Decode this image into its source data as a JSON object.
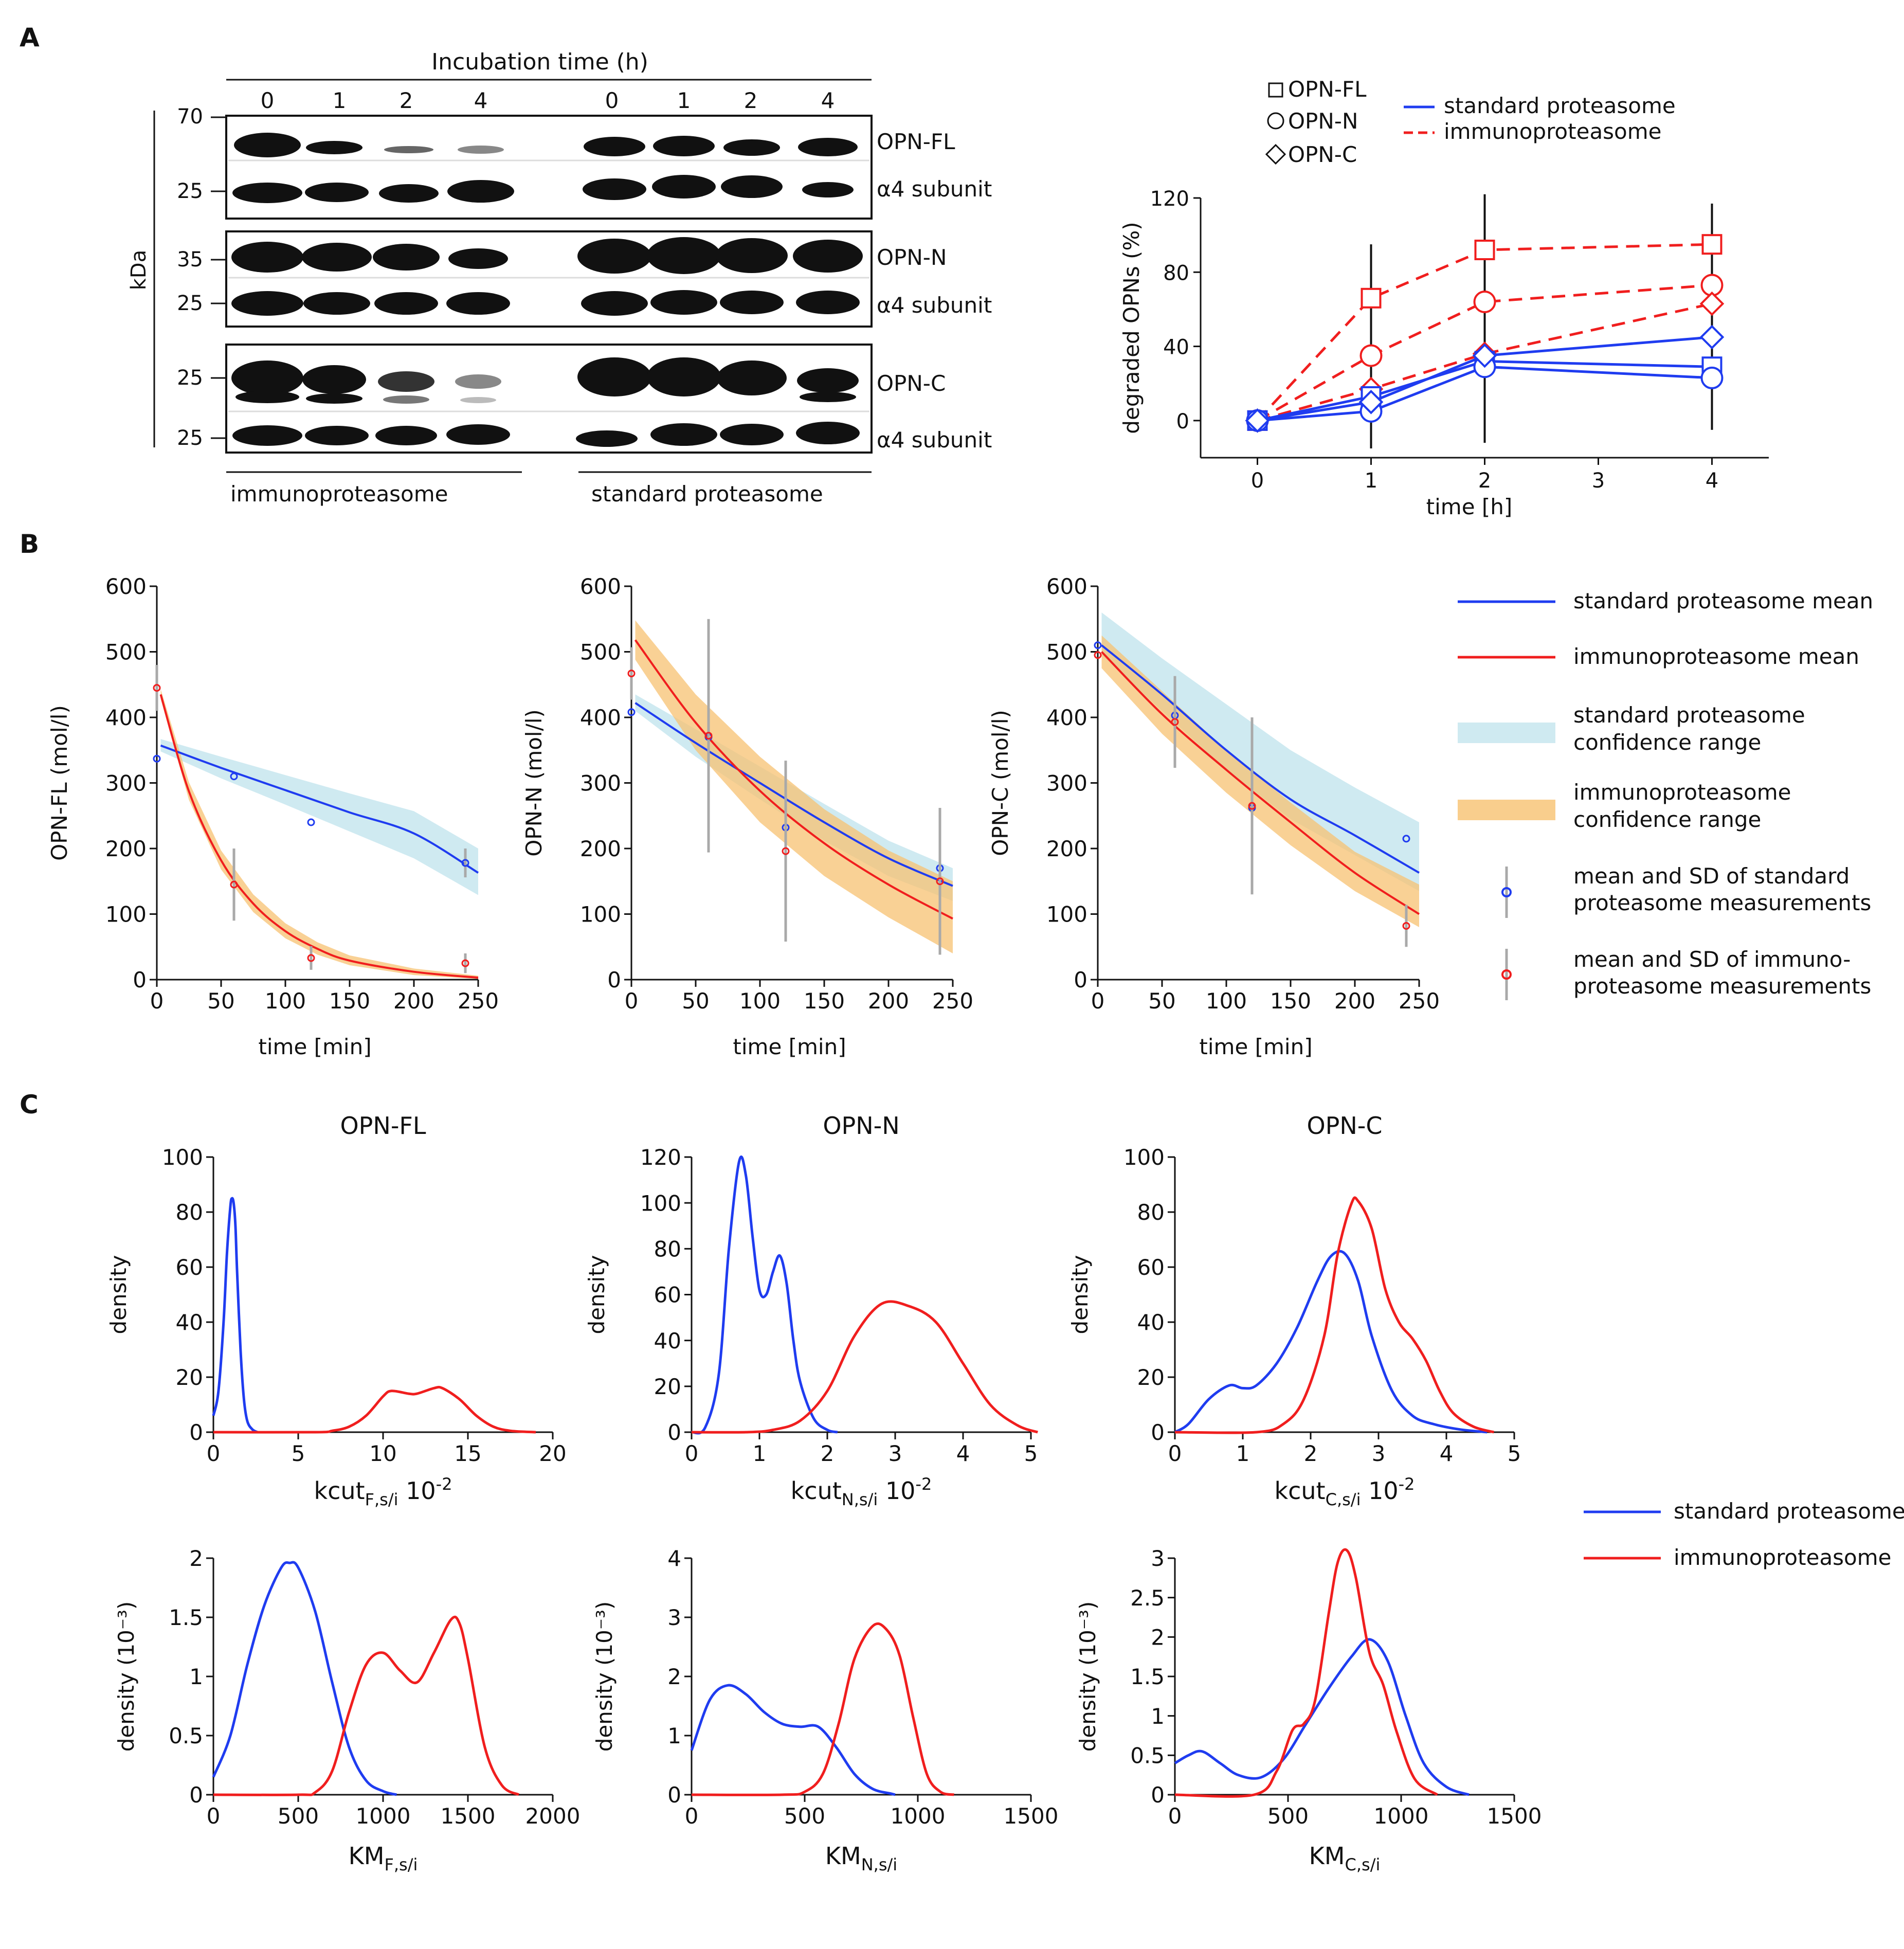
{
  "panels": {
    "A": "A",
    "B": "B",
    "C": "C"
  },
  "blot": {
    "title": "Incubation time (h)",
    "lanes": [
      "0",
      "1",
      "2",
      "4",
      "0",
      "1",
      "2",
      "4"
    ],
    "kda_label": "kDa",
    "mw": {
      "70": "70",
      "25": "25",
      "35": "35"
    },
    "band_labels": {
      "opn_fl": "OPN-FL",
      "alpha4": "α4 subunit",
      "opn_n": "OPN-N",
      "opn_c": "OPN-C"
    },
    "group_immuno": "immunoproteasome",
    "group_standard": "standard proteasome"
  },
  "colors": {
    "standard": "#1f3cf0",
    "immuno": "#f01e1e",
    "std_band": "#bfe3ec",
    "imm_band": "#f7c271",
    "sd": "#a9a9a9"
  },
  "chart_data": [
    {
      "id": "A-right",
      "type": "line",
      "xlabel": "time [h]",
      "ylabel": "degraded OPNs (%)",
      "xlim": [
        -0.5,
        4.5
      ],
      "ylim": [
        -20,
        120
      ],
      "xticks": [
        0,
        1,
        2,
        3,
        4
      ],
      "yticks": [
        0,
        40,
        80,
        120
      ],
      "x": [
        0,
        1,
        2,
        4
      ],
      "errorbars": [
        {
          "x": 1,
          "low": -15,
          "high": 95
        },
        {
          "x": 2,
          "low": -12,
          "high": 122
        },
        {
          "x": 4,
          "low": -5,
          "high": 117
        }
      ],
      "series": [
        {
          "name": "OPN-FL",
          "group": "immunoproteasome",
          "marker": "square",
          "values": [
            0,
            66,
            92,
            95
          ]
        },
        {
          "name": "OPN-N",
          "group": "immunoproteasome",
          "marker": "circle",
          "values": [
            0,
            35,
            64,
            73
          ]
        },
        {
          "name": "OPN-C",
          "group": "immunoproteasome",
          "marker": "diamond",
          "values": [
            0,
            17,
            36,
            63
          ]
        },
        {
          "name": "OPN-FL",
          "group": "standard proteasome",
          "marker": "square",
          "values": [
            0,
            13,
            32,
            29
          ]
        },
        {
          "name": "OPN-N",
          "group": "standard proteasome",
          "marker": "circle",
          "values": [
            0,
            5,
            29,
            23
          ]
        },
        {
          "name": "OPN-C",
          "group": "standard proteasome",
          "marker": "diamond",
          "values": [
            0,
            10,
            35,
            45
          ]
        }
      ],
      "legend_markers": [
        "OPN-FL",
        "OPN-N",
        "OPN-C"
      ],
      "legend_lines": [
        "standard proteasome",
        "immunoproteasome"
      ]
    },
    {
      "id": "B1",
      "type": "line",
      "xlabel": "time [min]",
      "ylabel": "OPN-FL (mol/l)",
      "xlim": [
        0,
        250
      ],
      "ylim": [
        0,
        600
      ],
      "xticks": [
        0,
        50,
        100,
        150,
        200,
        250
      ],
      "yticks": [
        0,
        100,
        200,
        300,
        400,
        500,
        600
      ],
      "standard": {
        "x": [
          3,
          50,
          100,
          150,
          200,
          250
        ],
        "mean": [
          357,
          323,
          289,
          255,
          223,
          163
        ],
        "low": [
          348,
          307,
          267,
          226,
          185,
          129
        ],
        "high": [
          367,
          340,
          312,
          284,
          257,
          200
        ]
      },
      "immuno": {
        "x": [
          3,
          25,
          50,
          75,
          100,
          125,
          150,
          200,
          250
        ],
        "mean": [
          435,
          287,
          182,
          116,
          74,
          47,
          29,
          12,
          3
        ],
        "low": [
          428,
          274,
          168,
          103,
          63,
          38,
          22,
          7,
          1
        ],
        "high": [
          443,
          301,
          197,
          130,
          86,
          57,
          37,
          17,
          6
        ]
      },
      "points_standard": [
        {
          "x": 0,
          "y": 337,
          "sd": 0
        },
        {
          "x": 60,
          "y": 310,
          "sd": 0
        },
        {
          "x": 120,
          "y": 240,
          "sd": 0
        },
        {
          "x": 240,
          "y": 178,
          "sd": 22
        }
      ],
      "points_immuno": [
        {
          "x": 0,
          "y": 445,
          "sd": 35
        },
        {
          "x": 60,
          "y": 145,
          "sd": 55
        },
        {
          "x": 120,
          "y": 33,
          "sd": 18
        },
        {
          "x": 240,
          "y": 25,
          "sd": 15
        }
      ]
    },
    {
      "id": "B2",
      "type": "line",
      "xlabel": "time [min]",
      "ylabel": "OPN-N (mol/l)",
      "xlim": [
        0,
        250
      ],
      "ylim": [
        0,
        600
      ],
      "xticks": [
        0,
        50,
        100,
        150,
        200,
        250
      ],
      "yticks": [
        0,
        100,
        200,
        300,
        400,
        500,
        600
      ],
      "standard": {
        "x": [
          3,
          50,
          100,
          150,
          200,
          250
        ],
        "mean": [
          422,
          361,
          300,
          240,
          185,
          143
        ],
        "low": [
          410,
          340,
          275,
          212,
          158,
          120
        ],
        "high": [
          435,
          382,
          325,
          268,
          212,
          170
        ]
      },
      "immuno": {
        "x": [
          3,
          50,
          100,
          150,
          200,
          250
        ],
        "mean": [
          518,
          392,
          288,
          208,
          145,
          93
        ],
        "low": [
          488,
          350,
          240,
          158,
          95,
          40
        ],
        "high": [
          548,
          435,
          340,
          260,
          197,
          150
        ]
      },
      "points_standard": [
        {
          "x": 0,
          "y": 408,
          "sd": 0
        },
        {
          "x": 60,
          "y": 370,
          "sd": 0
        },
        {
          "x": 120,
          "y": 232,
          "sd": 0
        },
        {
          "x": 240,
          "y": 170,
          "sd": 0
        }
      ],
      "points_immuno": [
        {
          "x": 0,
          "y": 467,
          "sd": 40
        },
        {
          "x": 60,
          "y": 372,
          "sd": 178
        },
        {
          "x": 120,
          "y": 196,
          "sd": 138
        },
        {
          "x": 240,
          "y": 150,
          "sd": 112
        }
      ]
    },
    {
      "id": "B3",
      "type": "line",
      "xlabel": "time [min]",
      "ylabel": "OPN-C (mol/l)",
      "xlim": [
        0,
        250
      ],
      "ylim": [
        0,
        600
      ],
      "xticks": [
        0,
        50,
        100,
        150,
        200,
        250
      ],
      "yticks": [
        0,
        100,
        200,
        300,
        400,
        500,
        600
      ],
      "standard": {
        "x": [
          3,
          50,
          100,
          150,
          200,
          250
        ],
        "mean": [
          510,
          435,
          350,
          275,
          220,
          163
        ],
        "low": [
          495,
          410,
          320,
          245,
          190,
          135
        ],
        "high": [
          560,
          490,
          420,
          350,
          293,
          240
        ]
      },
      "immuno": {
        "x": [
          3,
          50,
          100,
          150,
          200,
          250
        ],
        "mean": [
          500,
          405,
          320,
          240,
          163,
          100
        ],
        "low": [
          475,
          375,
          285,
          205,
          135,
          80
        ],
        "high": [
          525,
          440,
          350,
          270,
          195,
          145
        ]
      },
      "points_standard": [
        {
          "x": 0,
          "y": 510,
          "sd": 0
        },
        {
          "x": 60,
          "y": 403,
          "sd": 0
        },
        {
          "x": 120,
          "y": 262,
          "sd": 0
        },
        {
          "x": 240,
          "y": 215,
          "sd": 0
        }
      ],
      "points_immuno": [
        {
          "x": 0,
          "y": 495,
          "sd": 0
        },
        {
          "x": 60,
          "y": 393,
          "sd": 70
        },
        {
          "x": 120,
          "y": 265,
          "sd": 135
        },
        {
          "x": 240,
          "y": 82,
          "sd": 32
        }
      ]
    },
    {
      "id": "C1",
      "type": "line",
      "title": "OPN-FL",
      "ylabel": "density",
      "xlabel": "kcut",
      "xlabel_sub": "F,s/i",
      "xlabel_exp": "10-2",
      "xlim": [
        0,
        20
      ],
      "ylim": [
        0,
        100
      ],
      "xticks": [
        0,
        5,
        10,
        15,
        20
      ],
      "yticks": [
        0,
        20,
        40,
        60,
        80,
        100
      ],
      "standard": {
        "x": [
          0,
          0.3,
          0.6,
          0.8,
          1.0,
          1.1,
          1.2,
          1.3,
          1.4,
          1.6,
          1.8,
          2.0,
          2.3,
          2.6
        ],
        "y": [
          6,
          15,
          40,
          65,
          82,
          85,
          83,
          75,
          58,
          30,
          12,
          4,
          1,
          0
        ]
      },
      "immuno": {
        "x": [
          0,
          6,
          7,
          8,
          9,
          10,
          10.5,
          11.5,
          12,
          13,
          13.5,
          14.5,
          15.5,
          16.5,
          17.5,
          19
        ],
        "y": [
          0,
          0,
          0.5,
          2,
          6,
          13,
          15,
          14,
          14,
          16,
          16,
          12,
          6,
          2,
          0.5,
          0
        ]
      }
    },
    {
      "id": "C2",
      "type": "line",
      "title": "OPN-N",
      "ylabel": "density",
      "xlabel": "kcut",
      "xlabel_sub": "N,s/i",
      "xlabel_exp": "10-2",
      "xlim": [
        0,
        5
      ],
      "ylim": [
        0,
        120
      ],
      "xticks": [
        0,
        1,
        2,
        3,
        4,
        5
      ],
      "yticks": [
        0,
        20,
        40,
        60,
        80,
        100,
        120
      ],
      "standard": {
        "x": [
          0,
          0.2,
          0.4,
          0.55,
          0.7,
          0.8,
          0.9,
          1.0,
          1.1,
          1.2,
          1.3,
          1.4,
          1.5,
          1.6,
          1.8,
          2.0,
          2.15
        ],
        "y": [
          0,
          2,
          25,
          80,
          118,
          112,
          85,
          62,
          60,
          70,
          77,
          65,
          40,
          22,
          6,
          1,
          0
        ]
      },
      "immuno": {
        "x": [
          0,
          0.8,
          1.2,
          1.6,
          2.0,
          2.4,
          2.8,
          3.2,
          3.6,
          4.0,
          4.4,
          4.8,
          5.1
        ],
        "y": [
          0,
          0,
          1,
          5,
          18,
          42,
          56,
          55,
          48,
          30,
          12,
          3,
          0
        ]
      }
    },
    {
      "id": "C3",
      "type": "line",
      "title": "OPN-C",
      "ylabel": "density",
      "xlabel": "kcut",
      "xlabel_sub": "C,s/i",
      "xlabel_exp": "10-2",
      "xlim": [
        0,
        5
      ],
      "ylim": [
        0,
        100
      ],
      "xticks": [
        0,
        1,
        2,
        3,
        4,
        5
      ],
      "yticks": [
        0,
        20,
        40,
        60,
        80,
        100
      ],
      "standard": {
        "x": [
          0,
          0.2,
          0.5,
          0.8,
          1.0,
          1.2,
          1.5,
          1.8,
          2.1,
          2.3,
          2.5,
          2.7,
          2.9,
          3.2,
          3.5,
          3.8,
          4.2,
          4.6
        ],
        "y": [
          0,
          3,
          12,
          17,
          16,
          17,
          25,
          38,
          55,
          64,
          65,
          55,
          35,
          15,
          6,
          3,
          1,
          0
        ]
      },
      "immuno": {
        "x": [
          0,
          1.2,
          1.6,
          1.9,
          2.2,
          2.4,
          2.6,
          2.7,
          2.9,
          3.1,
          3.3,
          3.5,
          3.7,
          3.9,
          4.1,
          4.4,
          4.7
        ],
        "y": [
          0,
          0,
          3,
          12,
          35,
          65,
          83,
          84,
          74,
          52,
          40,
          34,
          26,
          15,
          7,
          2,
          0
        ]
      }
    },
    {
      "id": "C4",
      "type": "line",
      "ylabel": "density (10⁻³)",
      "xlabel": "KM",
      "xlabel_sub": "F,s/i",
      "xlim": [
        0,
        2000
      ],
      "ylim": [
        0,
        2.0
      ],
      "xticks": [
        0,
        500,
        1000,
        1500,
        2000
      ],
      "yticks": [
        0.0,
        0.5,
        1.0,
        1.5,
        2.0
      ],
      "standard": {
        "x": [
          0,
          100,
          200,
          300,
          400,
          450,
          500,
          600,
          700,
          800,
          900,
          1000,
          1080
        ],
        "y": [
          0.15,
          0.5,
          1.1,
          1.6,
          1.92,
          1.96,
          1.92,
          1.55,
          0.95,
          0.4,
          0.12,
          0.03,
          0
        ]
      },
      "immuno": {
        "x": [
          0,
          500,
          600,
          700,
          800,
          900,
          1000,
          1100,
          1200,
          1300,
          1400,
          1450,
          1500,
          1600,
          1700,
          1800
        ],
        "y": [
          0,
          0,
          0.02,
          0.2,
          0.7,
          1.1,
          1.2,
          1.05,
          0.95,
          1.2,
          1.48,
          1.45,
          1.15,
          0.4,
          0.08,
          0
        ]
      }
    },
    {
      "id": "C5",
      "type": "line",
      "ylabel": "density (10⁻³)",
      "xlabel": "KM",
      "xlabel_sub": "N,s/i",
      "xlim": [
        0,
        1500
      ],
      "ylim": [
        0,
        4
      ],
      "xticks": [
        0,
        500,
        1000,
        1500
      ],
      "yticks": [
        0,
        1,
        2,
        3,
        4
      ],
      "standard": {
        "x": [
          0,
          80,
          160,
          240,
          320,
          400,
          480,
          560,
          640,
          720,
          800,
          880,
          900
        ],
        "y": [
          0.75,
          1.6,
          1.85,
          1.7,
          1.4,
          1.2,
          1.15,
          1.15,
          0.8,
          0.35,
          0.1,
          0.02,
          0
        ]
      },
      "immuno": {
        "x": [
          0,
          400,
          500,
          580,
          650,
          720,
          800,
          860,
          920,
          980,
          1040,
          1100,
          1160
        ],
        "y": [
          0,
          0,
          0.05,
          0.35,
          1.2,
          2.3,
          2.85,
          2.8,
          2.35,
          1.3,
          0.35,
          0.05,
          0
        ]
      }
    },
    {
      "id": "C6",
      "type": "line",
      "ylabel": "density (10⁻³)",
      "xlabel": "KM",
      "xlabel_sub": "C,s/i",
      "xlim": [
        0,
        1500
      ],
      "ylim": [
        0,
        3.0
      ],
      "xticks": [
        0,
        500,
        1000,
        1500
      ],
      "yticks": [
        0.0,
        0.5,
        1.0,
        1.5,
        2.0,
        2.5,
        3.0
      ],
      "standard": {
        "x": [
          0,
          60,
          120,
          200,
          280,
          380,
          480,
          580,
          680,
          780,
          860,
          940,
          1020,
          1100,
          1200,
          1300
        ],
        "y": [
          0.4,
          0.5,
          0.55,
          0.4,
          0.25,
          0.22,
          0.45,
          0.9,
          1.35,
          1.75,
          1.97,
          1.7,
          1.0,
          0.4,
          0.1,
          0
        ]
      },
      "immuno": {
        "x": [
          0,
          350,
          450,
          520,
          570,
          620,
          680,
          720,
          760,
          800,
          860,
          920,
          980,
          1060,
          1160
        ],
        "y": [
          0,
          0,
          0.3,
          0.82,
          0.9,
          1.2,
          2.3,
          2.95,
          3.1,
          2.75,
          1.8,
          1.4,
          0.8,
          0.2,
          0
        ]
      }
    }
  ],
  "legend_B": {
    "std_mean": "standard proteasome mean",
    "imm_mean": "immunoproteasome mean",
    "std_conf_1": "standard proteasome",
    "std_conf_2": "confidence range",
    "imm_conf_1": "immunoproteasome",
    "imm_conf_2": "confidence range",
    "std_pts_1": "mean and SD of standard",
    "std_pts_2": "proteasome measurements",
    "imm_pts_1": "mean and SD of immuno-",
    "imm_pts_2": "proteasome measurements"
  },
  "legend_C": {
    "standard": "standard proteasome",
    "immuno": "immunoproteasome"
  }
}
